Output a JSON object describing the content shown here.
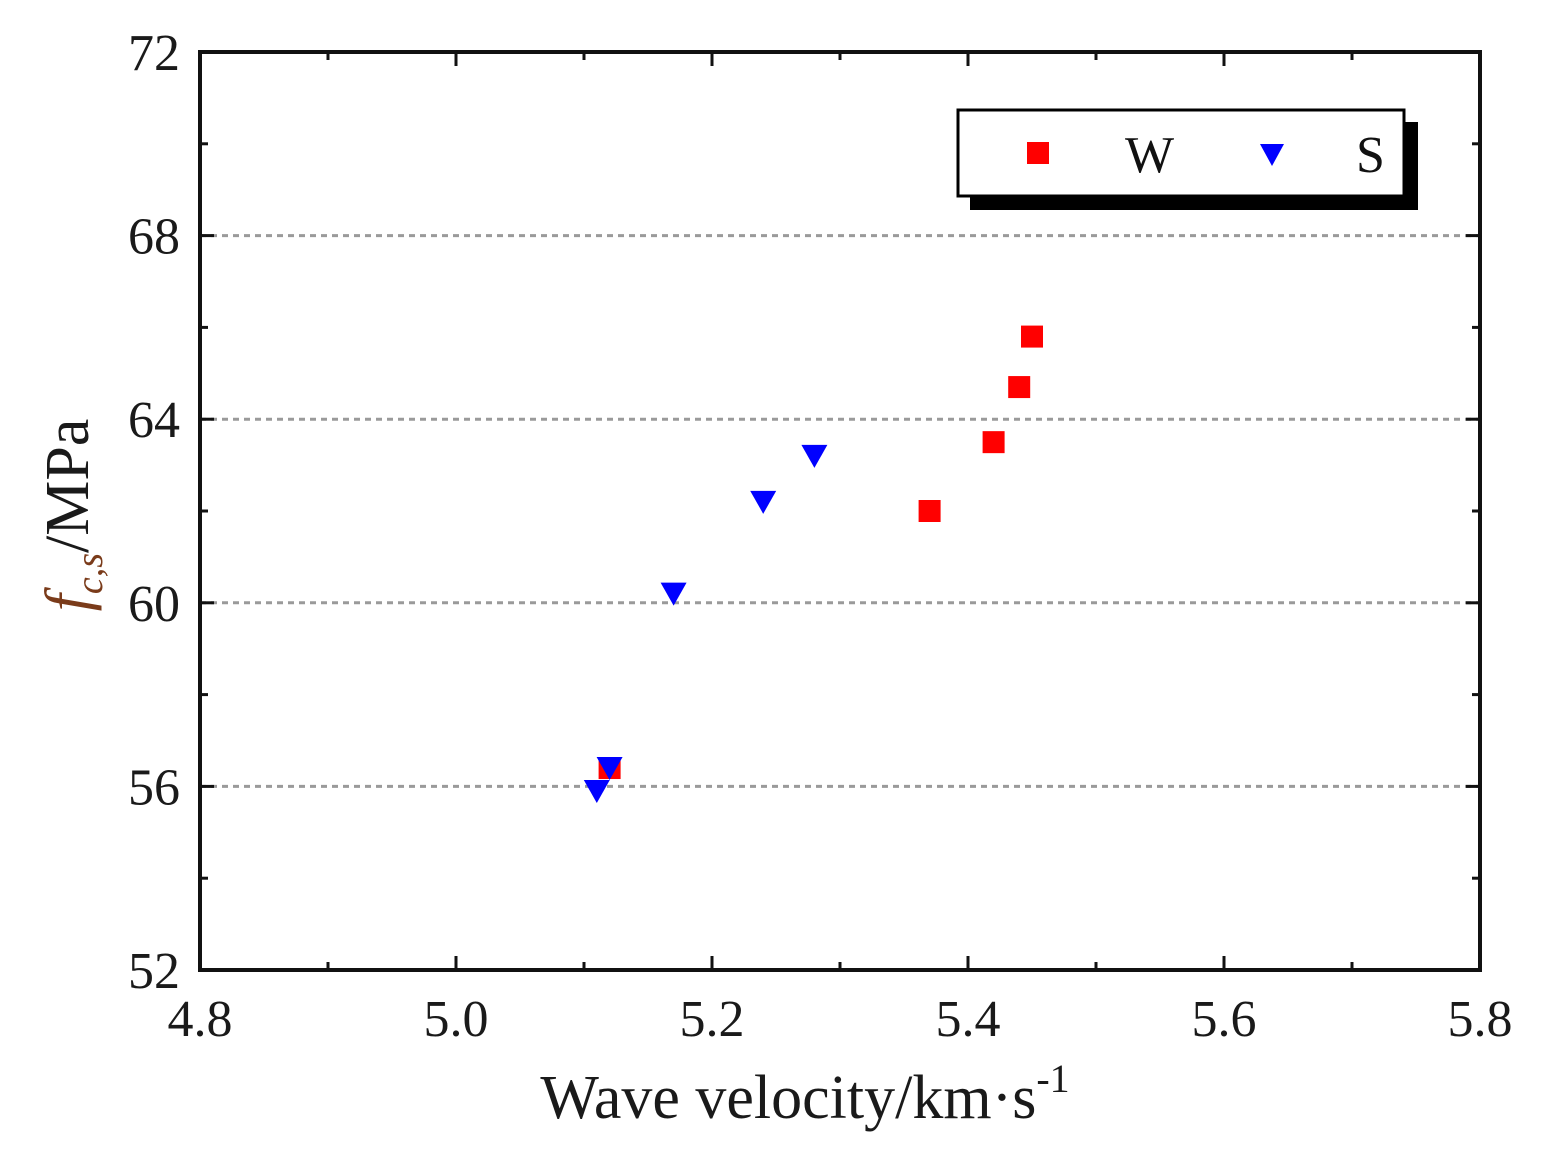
{
  "chart_data": {
    "type": "scatter",
    "title": "",
    "xlabel": "Wave velocity/km·s-1",
    "xlabel_parts": {
      "main": "Wave velocity/km·s",
      "sup": "-1"
    },
    "ylabel": "fc,s/MPa",
    "ylabel_parts": {
      "f": "f",
      "sub": "c,s",
      "rest": "/MPa"
    },
    "xlim": [
      4.8,
      5.8
    ],
    "ylim": [
      52,
      72
    ],
    "xticks": [
      "4.8",
      "5.0",
      "5.2",
      "5.4",
      "5.6",
      "5.8"
    ],
    "yticks": [
      "52",
      "56",
      "60",
      "64",
      "68",
      "72"
    ],
    "x_minor_step": 0.1,
    "y_minor_step": 2,
    "grid": "horizontal dashed at major y ticks",
    "legend": "top-right",
    "series": [
      {
        "name": "W",
        "marker": "square",
        "color": "#ff0000",
        "points": [
          [
            5.12,
            56.4
          ],
          [
            5.37,
            62.0
          ],
          [
            5.42,
            63.5
          ],
          [
            5.44,
            64.7
          ],
          [
            5.45,
            65.8
          ]
        ]
      },
      {
        "name": "S",
        "marker": "triangle-down",
        "color": "#0000ff",
        "points": [
          [
            5.11,
            55.9
          ],
          [
            5.12,
            56.4
          ],
          [
            5.17,
            60.2
          ],
          [
            5.24,
            62.2
          ],
          [
            5.28,
            63.2
          ]
        ]
      }
    ]
  }
}
